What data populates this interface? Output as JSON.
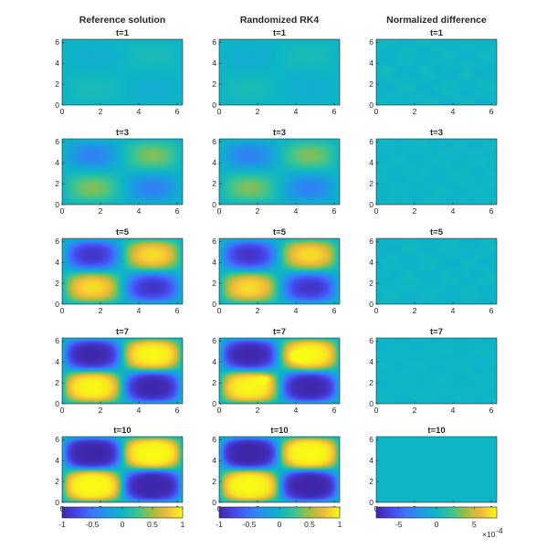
{
  "chart_data": {
    "type": "heatmap",
    "columns": [
      {
        "title": "Reference solution",
        "kind": "reference"
      },
      {
        "title": "Randomized RK4",
        "kind": "rk4"
      },
      {
        "title": "Normalized difference",
        "kind": "difference"
      }
    ],
    "times": [
      1,
      3,
      5,
      7,
      10
    ],
    "panel_title_prefix": "t=",
    "xlim": [
      0,
      6.2832
    ],
    "ylim": [
      0,
      6.2832
    ],
    "xticks": [
      0,
      2,
      4,
      6
    ],
    "yticks": [
      0,
      2,
      4,
      6
    ],
    "solution_amplitude": [
      0.08,
      0.45,
      1.4,
      2.4,
      3.0
    ],
    "difference_amplitude": [
      5e-05,
      2.5e-05,
      4e-05,
      2e-05,
      0
    ],
    "colorbars": [
      {
        "range": [
          -1,
          1
        ],
        "ticks": [
          -1,
          -0.5,
          0,
          0.5,
          1
        ],
        "tick_labels": [
          "-1",
          "-0.5",
          "0",
          "0.5",
          "1"
        ]
      },
      {
        "range": [
          -1,
          1
        ],
        "ticks": [
          -1,
          -0.5,
          0,
          0.5,
          1
        ],
        "tick_labels": [
          "-1",
          "-0.5",
          "0",
          "0.5",
          "1"
        ]
      },
      {
        "range": [
          -0.0008,
          0.0008
        ],
        "ticks": [
          -5,
          0,
          5
        ],
        "tick_labels": [
          "-5",
          "0",
          "5"
        ],
        "multiplier": "×10",
        "exponent": "-4"
      }
    ],
    "colormap": "parula",
    "grid": false
  }
}
